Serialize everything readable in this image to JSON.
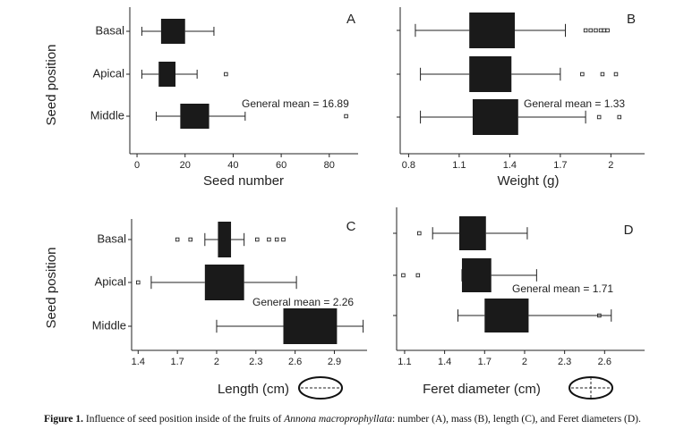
{
  "chart_data": [
    {
      "type": "box",
      "label": "A",
      "annotation": "General mean = 16.89",
      "xlabel": "Seed number",
      "ylabel": "Seed position",
      "categories": [
        "Basal",
        "Apical",
        "Middle"
      ],
      "color": "#1a1a1a",
      "boxes": [
        {
          "whislo": 2,
          "q1": 10,
          "q3": 20,
          "whishi": 32,
          "outliers": []
        },
        {
          "whislo": 2,
          "q1": 9,
          "q3": 16,
          "whishi": 25,
          "outliers": [
            37
          ]
        },
        {
          "whislo": 8,
          "q1": 18,
          "q3": 30,
          "whishi": 45,
          "outliers": [
            87
          ]
        }
      ],
      "xlim": [
        -3,
        92
      ],
      "xticks": [
        0,
        20,
        40,
        60,
        80
      ]
    },
    {
      "type": "box",
      "label": "B",
      "annotation": "General mean = 1.33",
      "xlabel": "Weight (g)",
      "categories": [
        null,
        null,
        null
      ],
      "color": "#1a1a1a",
      "boxes": [
        {
          "whislo": 0.84,
          "q1": 1.16,
          "q3": 1.43,
          "whishi": 1.73,
          "outliers": [
            1.85,
            1.88,
            1.91,
            1.94,
            1.96,
            1.98
          ]
        },
        {
          "whislo": 0.87,
          "q1": 1.16,
          "q3": 1.41,
          "whishi": 1.7,
          "outliers": [
            1.83,
            1.95,
            2.03
          ]
        },
        {
          "whislo": 0.87,
          "q1": 1.18,
          "q3": 1.45,
          "whishi": 1.85,
          "outliers": [
            1.93,
            2.05
          ]
        }
      ],
      "xlim": [
        0.75,
        2.2
      ],
      "xticks": [
        0.8,
        1.1,
        1.4,
        1.7,
        2
      ]
    },
    {
      "type": "box",
      "label": "C",
      "annotation": "General mean = 2.26",
      "xlabel": "Length (cm)",
      "ylabel": "Seed position",
      "categories": [
        "Basal",
        "Apical",
        "Middle"
      ],
      "color": "#1a1a1a",
      "boxes": [
        {
          "whislo": 1.91,
          "q1": 2.01,
          "q3": 2.11,
          "whishi": 2.21,
          "outliers": [
            1.7,
            1.8,
            2.31,
            2.4,
            2.46,
            2.51
          ]
        },
        {
          "whislo": 1.5,
          "q1": 1.91,
          "q3": 2.21,
          "whishi": 2.61,
          "outliers": [
            1.4
          ]
        },
        {
          "whislo": 2,
          "q1": 2.51,
          "q3": 2.92,
          "whishi": 3.12,
          "outliers": []
        }
      ],
      "xlim": [
        1.35,
        3.15
      ],
      "xticks": [
        1.4,
        1.7,
        2,
        2.3,
        2.6,
        2.9
      ]
    },
    {
      "type": "box",
      "label": "D",
      "annotation": "General mean = 1.71",
      "xlabel": "Feret diameter (cm)",
      "categories": [
        null,
        null,
        null
      ],
      "color": "#1a1a1a",
      "boxes": [
        {
          "whislo": 1.31,
          "q1": 1.51,
          "q3": 1.71,
          "whishi": 2.02,
          "outliers": [
            1.21
          ]
        },
        {
          "whislo": 1.53,
          "q1": 1.53,
          "q3": 1.75,
          "whishi": 2.09,
          "outliers": [
            1.09,
            1.2
          ]
        },
        {
          "whislo": 1.5,
          "q1": 1.7,
          "q3": 2.03,
          "whishi": 2.65,
          "outliers": [
            2.56
          ]
        }
      ],
      "xlim": [
        1.04,
        2.9
      ],
      "xticks": [
        1.1,
        1.4,
        1.7,
        2,
        2.3,
        2.6
      ]
    }
  ],
  "caption": {
    "label": "Figure 1.",
    "before": "Influence of seed position inside of the fruits of ",
    "species": "Annona macroprophyllata",
    "after": ": number (A), mass (B), length (C), and Feret diameters (D)."
  }
}
